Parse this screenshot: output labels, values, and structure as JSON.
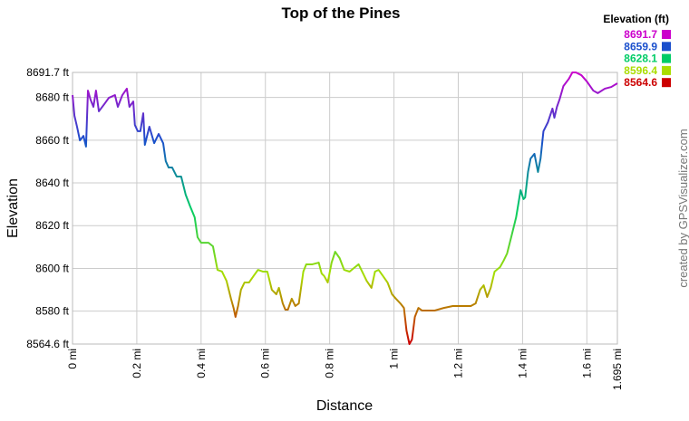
{
  "chart_data": {
    "type": "line",
    "title": "Top of the Pines",
    "x_label": "Distance",
    "y_label": "Elevation",
    "credit": "created by GPSVisualizer.com",
    "legend_title": "Elevation (ft)",
    "color_scale": [
      {
        "value": 8691.7,
        "color": "#cc00cc"
      },
      {
        "value": 8659.9,
        "color": "#1a4fcc"
      },
      {
        "value": 8628.1,
        "color": "#00cc66"
      },
      {
        "value": 8596.4,
        "color": "#aadd00"
      },
      {
        "value": 8564.6,
        "color": "#cc0000"
      }
    ],
    "grid": true,
    "xlim": [
      0,
      1.695
    ],
    "xticks": [
      {
        "value": 0,
        "label": "0 mi"
      },
      {
        "value": 0.2,
        "label": "0.2 mi"
      },
      {
        "value": 0.4,
        "label": "0.4 mi"
      },
      {
        "value": 0.6,
        "label": "0.6 mi"
      },
      {
        "value": 0.8,
        "label": "0.8 mi"
      },
      {
        "value": 1,
        "label": "1 mi"
      },
      {
        "value": 1.2,
        "label": "1.2 mi"
      },
      {
        "value": 1.4,
        "label": "1.4 mi"
      },
      {
        "value": 1.6,
        "label": "1.6 mi"
      },
      {
        "value": 1.695,
        "label": "1.695 mi"
      }
    ],
    "ylim": [
      8564.6,
      8691.7
    ],
    "yticks": [
      {
        "value": 8564.6,
        "label": "8564.6 ft"
      },
      {
        "value": 8580,
        "label": "8580 ft"
      },
      {
        "value": 8600,
        "label": "8600 ft"
      },
      {
        "value": 8620,
        "label": "8620 ft"
      },
      {
        "value": 8640,
        "label": "8640 ft"
      },
      {
        "value": 8660,
        "label": "8660 ft"
      },
      {
        "value": 8680,
        "label": "8680 ft"
      },
      {
        "value": 8691.7,
        "label": "8691.7 ft"
      }
    ],
    "x": [
      0,
      0.006,
      0.014,
      0.023,
      0.034,
      0.042,
      0.048,
      0.056,
      0.065,
      0.073,
      0.082,
      0.099,
      0.113,
      0.132,
      0.141,
      0.155,
      0.169,
      0.177,
      0.189,
      0.194,
      0.203,
      0.211,
      0.22,
      0.225,
      0.239,
      0.254,
      0.268,
      0.282,
      0.29,
      0.299,
      0.31,
      0.324,
      0.338,
      0.352,
      0.366,
      0.38,
      0.389,
      0.4,
      0.423,
      0.437,
      0.451,
      0.465,
      0.479,
      0.493,
      0.501,
      0.507,
      0.515,
      0.524,
      0.535,
      0.549,
      0.563,
      0.577,
      0.592,
      0.606,
      0.62,
      0.634,
      0.642,
      0.654,
      0.662,
      0.67,
      0.682,
      0.693,
      0.704,
      0.718,
      0.727,
      0.746,
      0.766,
      0.775,
      0.783,
      0.794,
      0.806,
      0.817,
      0.831,
      0.845,
      0.862,
      0.879,
      0.89,
      0.901,
      0.915,
      0.93,
      0.941,
      0.952,
      0.966,
      0.98,
      0.994,
      1.006,
      1.02,
      1.031,
      1.039,
      1.048,
      1.056,
      1.065,
      1.076,
      1.087,
      1.099,
      1.127,
      1.155,
      1.183,
      1.211,
      1.239,
      1.254,
      1.268,
      1.279,
      1.29,
      1.301,
      1.313,
      1.33,
      1.341,
      1.352,
      1.366,
      1.38,
      1.394,
      1.403,
      1.408,
      1.417,
      1.425,
      1.437,
      1.448,
      1.456,
      1.465,
      1.479,
      1.493,
      1.499,
      1.507,
      1.515,
      1.527,
      1.544,
      1.555,
      1.566,
      1.583,
      1.6,
      1.62,
      1.634,
      1.656,
      1.676,
      1.695
    ],
    "values": [
      8681.1,
      8671.4,
      8666.3,
      8659.9,
      8662.0,
      8657.0,
      8683.2,
      8679.0,
      8675.6,
      8683.2,
      8673.5,
      8676.9,
      8679.8,
      8681.1,
      8675.6,
      8681.1,
      8684.1,
      8675.6,
      8678.1,
      8667.1,
      8664.2,
      8664.2,
      8672.6,
      8657.8,
      8666.3,
      8658.6,
      8662.9,
      8658.6,
      8650.2,
      8647.2,
      8647.2,
      8643.0,
      8643.0,
      8634.5,
      8629.0,
      8623.9,
      8614.6,
      8612.0,
      8612.0,
      8610.3,
      8599.3,
      8598.5,
      8594.2,
      8585.8,
      8581.5,
      8577.3,
      8582.4,
      8590.0,
      8593.4,
      8593.4,
      8596.4,
      8599.3,
      8598.5,
      8598.5,
      8590.0,
      8587.9,
      8590.9,
      8583.6,
      8580.7,
      8580.7,
      8585.8,
      8582.4,
      8583.6,
      8598.5,
      8601.9,
      8601.9,
      8602.7,
      8597.6,
      8596.4,
      8593.4,
      8602.7,
      8607.8,
      8604.8,
      8599.3,
      8598.5,
      8600.6,
      8601.9,
      8598.5,
      8594.2,
      8590.9,
      8598.5,
      8599.3,
      8596.4,
      8593.4,
      8587.9,
      8585.8,
      8583.6,
      8581.5,
      8570.9,
      8564.6,
      8566.7,
      8577.3,
      8581.5,
      8580.3,
      8580.3,
      8580.3,
      8581.5,
      8582.4,
      8582.4,
      8582.4,
      8583.6,
      8590.0,
      8592.1,
      8586.6,
      8590.9,
      8598.5,
      8600.6,
      8603.6,
      8607.0,
      8615.4,
      8623.9,
      8636.6,
      8632.4,
      8633.2,
      8645.1,
      8651.4,
      8653.6,
      8645.1,
      8651.4,
      8664.2,
      8668.4,
      8674.8,
      8670.5,
      8675.6,
      8679.0,
      8685.3,
      8688.7,
      8691.7,
      8691.7,
      8690.4,
      8687.5,
      8683.2,
      8682.0,
      8684.1,
      8684.9,
      8686.6
    ]
  }
}
